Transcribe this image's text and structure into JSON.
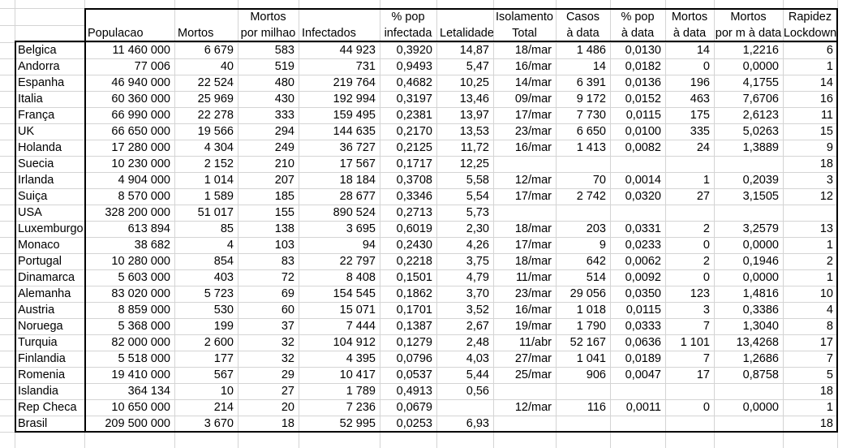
{
  "app": {
    "kind": "spreadsheet-table",
    "title": ""
  },
  "colors": {
    "background": "#ffffff",
    "gridline": "#d4d4d4",
    "thick_border": "#000000",
    "text": "#000000"
  },
  "table": {
    "columns": [
      {
        "key": "country",
        "header1": "",
        "header2": ""
      },
      {
        "key": "populacao",
        "header1": "",
        "header2": "Populacao"
      },
      {
        "key": "mortos",
        "header1": "",
        "header2": "Mortos"
      },
      {
        "key": "mortos-por-milhao",
        "header1": "Mortos",
        "header2": "por milhao"
      },
      {
        "key": "infectados",
        "header1": "",
        "header2": "Infectados"
      },
      {
        "key": "pct-pop-infectada",
        "header1": "% pop",
        "header2": "infectada"
      },
      {
        "key": "letalidade",
        "header1": "",
        "header2": "Letalidade"
      },
      {
        "key": "isolamento-total",
        "header1": "Isolamento",
        "header2": "Total"
      },
      {
        "key": "casos-a-data",
        "header1": "Casos",
        "header2": "à data"
      },
      {
        "key": "pct-pop-a-data",
        "header1": "% pop",
        "header2": "à data"
      },
      {
        "key": "mortos-a-data",
        "header1": "Mortos",
        "header2": "à data"
      },
      {
        "key": "mortos-por-m-a-data",
        "header1": "Mortos",
        "header2": "por m à data"
      },
      {
        "key": "rapidez-lockdown",
        "header1": "Rapidez",
        "header2": "Lockdown"
      }
    ],
    "rows": [
      [
        "Belgica",
        "11 460 000",
        "6 679",
        "583",
        "44 923",
        "0,3920",
        "14,87",
        "18/mar",
        "1 486",
        "0,0130",
        "14",
        "1,2216",
        "6"
      ],
      [
        "Andorra",
        "77 006",
        "40",
        "519",
        "731",
        "0,9493",
        "5,47",
        "16/mar",
        "14",
        "0,0182",
        "0",
        "0,0000",
        "1"
      ],
      [
        "Espanha",
        "46 940 000",
        "22 524",
        "480",
        "219 764",
        "0,4682",
        "10,25",
        "14/mar",
        "6 391",
        "0,0136",
        "196",
        "4,1755",
        "14"
      ],
      [
        "Italia",
        "60 360 000",
        "25 969",
        "430",
        "192 994",
        "0,3197",
        "13,46",
        "09/mar",
        "9 172",
        "0,0152",
        "463",
        "7,6706",
        "16"
      ],
      [
        "França",
        "66 990 000",
        "22 278",
        "333",
        "159 495",
        "0,2381",
        "13,97",
        "17/mar",
        "7 730",
        "0,0115",
        "175",
        "2,6123",
        "11"
      ],
      [
        "UK",
        "66 650 000",
        "19 566",
        "294",
        "144 635",
        "0,2170",
        "13,53",
        "23/mar",
        "6 650",
        "0,0100",
        "335",
        "5,0263",
        "15"
      ],
      [
        "Holanda",
        "17 280 000",
        "4 304",
        "249",
        "36 727",
        "0,2125",
        "11,72",
        "16/mar",
        "1 413",
        "0,0082",
        "24",
        "1,3889",
        "9"
      ],
      [
        "Suecia",
        "10 230 000",
        "2 152",
        "210",
        "17 567",
        "0,1717",
        "12,25",
        "",
        "",
        "",
        "",
        "",
        "18"
      ],
      [
        "Irlanda",
        "4 904 000",
        "1 014",
        "207",
        "18 184",
        "0,3708",
        "5,58",
        "12/mar",
        "70",
        "0,0014",
        "1",
        "0,2039",
        "3"
      ],
      [
        "Suiça",
        "8 570 000",
        "1 589",
        "185",
        "28 677",
        "0,3346",
        "5,54",
        "17/mar",
        "2 742",
        "0,0320",
        "27",
        "3,1505",
        "12"
      ],
      [
        "USA",
        "328 200 000",
        "51 017",
        "155",
        "890 524",
        "0,2713",
        "5,73",
        "",
        "",
        "",
        "",
        "",
        ""
      ],
      [
        "Luxemburgo",
        "613 894",
        "85",
        "138",
        "3 695",
        "0,6019",
        "2,30",
        "18/mar",
        "203",
        "0,0331",
        "2",
        "3,2579",
        "13"
      ],
      [
        "Monaco",
        "38 682",
        "4",
        "103",
        "94",
        "0,2430",
        "4,26",
        "17/mar",
        "9",
        "0,0233",
        "0",
        "0,0000",
        "1"
      ],
      [
        "Portugal",
        "10 280 000",
        "854",
        "83",
        "22 797",
        "0,2218",
        "3,75",
        "18/mar",
        "642",
        "0,0062",
        "2",
        "0,1946",
        "2"
      ],
      [
        "Dinamarca",
        "5 603 000",
        "403",
        "72",
        "8 408",
        "0,1501",
        "4,79",
        "11/mar",
        "514",
        "0,0092",
        "0",
        "0,0000",
        "1"
      ],
      [
        "Alemanha",
        "83 020 000",
        "5 723",
        "69",
        "154 545",
        "0,1862",
        "3,70",
        "23/mar",
        "29 056",
        "0,0350",
        "123",
        "1,4816",
        "10"
      ],
      [
        "Austria",
        "8 859 000",
        "530",
        "60",
        "15 071",
        "0,1701",
        "3,52",
        "16/mar",
        "1 018",
        "0,0115",
        "3",
        "0,3386",
        "4"
      ],
      [
        "Noruega",
        "5 368 000",
        "199",
        "37",
        "7 444",
        "0,1387",
        "2,67",
        "19/mar",
        "1 790",
        "0,0333",
        "7",
        "1,3040",
        "8"
      ],
      [
        "Turquia",
        "82 000 000",
        "2 600",
        "32",
        "104 912",
        "0,1279",
        "2,48",
        "11/abr",
        "52 167",
        "0,0636",
        "1 101",
        "13,4268",
        "17"
      ],
      [
        "Finlandia",
        "5 518 000",
        "177",
        "32",
        "4 395",
        "0,0796",
        "4,03",
        "27/mar",
        "1 041",
        "0,0189",
        "7",
        "1,2686",
        "7"
      ],
      [
        "Romenia",
        "19 410 000",
        "567",
        "29",
        "10 417",
        "0,0537",
        "5,44",
        "25/mar",
        "906",
        "0,0047",
        "17",
        "0,8758",
        "5"
      ],
      [
        "Islandia",
        "364 134",
        "10",
        "27",
        "1 789",
        "0,4913",
        "0,56",
        "",
        "",
        "",
        "",
        "",
        "18"
      ],
      [
        "Rep Checa",
        "10 650 000",
        "214",
        "20",
        "7 236",
        "0,0679",
        "",
        "12/mar",
        "116",
        "0,0011",
        "0",
        "0,0000",
        "1"
      ],
      [
        "Brasil",
        "209 500 000",
        "3 670",
        "18",
        "52 995",
        "0,0253",
        "6,93",
        "",
        "",
        "",
        "",
        "",
        "18"
      ]
    ]
  }
}
